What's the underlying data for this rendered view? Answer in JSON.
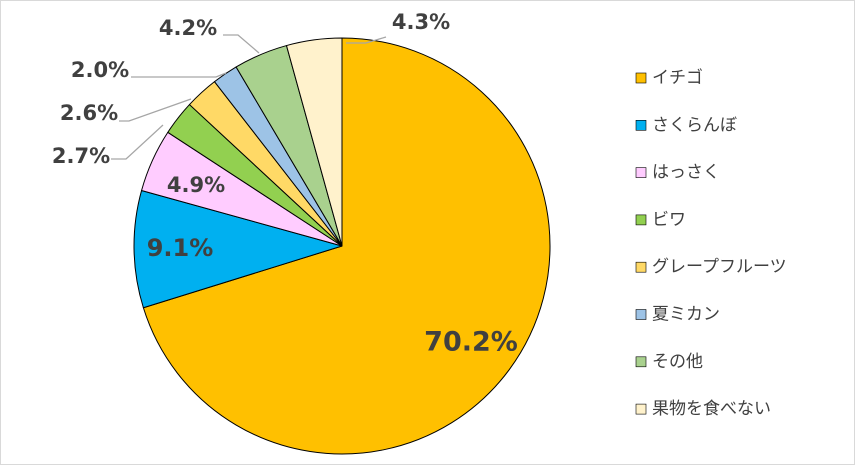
{
  "chart_data": {
    "type": "pie",
    "categories": [
      "イチゴ",
      "さくらんぼ",
      "はっさく",
      "ビワ",
      "グレープフルーツ",
      "夏ミカン",
      "その他",
      "果物を食べない"
    ],
    "values": [
      70.2,
      9.1,
      4.9,
      2.7,
      2.6,
      2.0,
      4.2,
      4.3
    ],
    "labels": [
      "70.2%",
      "9.1%",
      "4.9%",
      "2.7%",
      "2.6%",
      "2.0%",
      "4.2%",
      "4.3%"
    ],
    "colors": [
      "#FFC000",
      "#00B0F0",
      "#FFCCFF",
      "#92D050",
      "#FFD966",
      "#9DC3E6",
      "#A9D18E",
      "#FFF2CC"
    ],
    "slice_outline_color": "#000000",
    "leader_line_color": "#A6A6A6",
    "label_color": "#404040",
    "title": "",
    "legend_position": "right"
  }
}
